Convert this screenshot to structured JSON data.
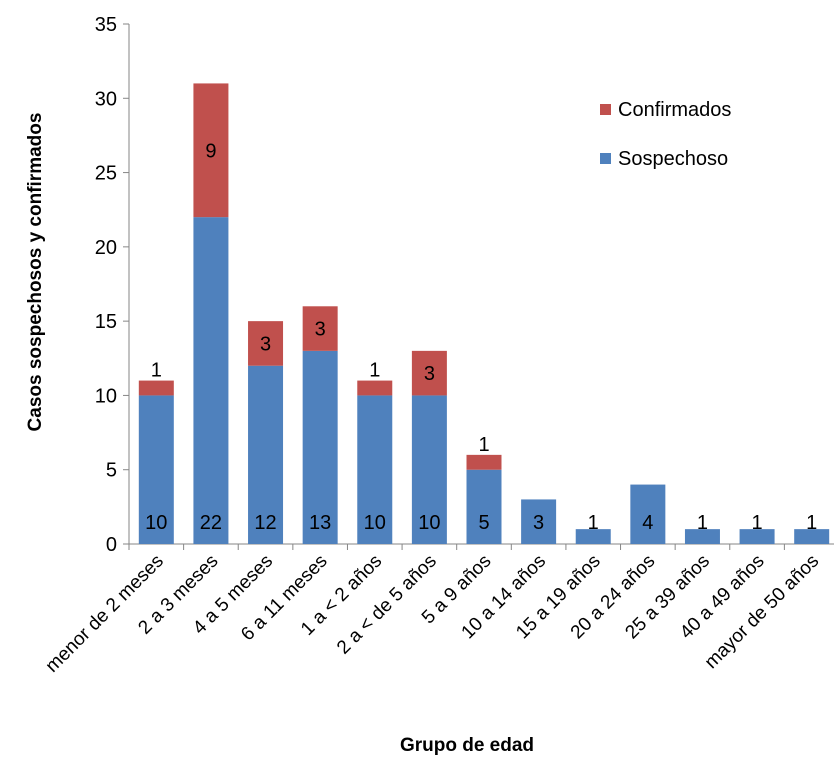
{
  "chart_data": {
    "type": "bar",
    "stacked": true,
    "title": "",
    "xlabel": "Grupo de edad",
    "ylabel": "Casos sospechosos y confirmados",
    "ylim": [
      0,
      35
    ],
    "yticks": [
      0,
      5,
      10,
      15,
      20,
      25,
      30,
      35
    ],
    "grid": false,
    "legend_position": "top-right",
    "categories": [
      "menor de 2 meses",
      "2 a 3 meses",
      "4 a 5 meses",
      "6 a 11 meses",
      "1 a < 2 años",
      "2 a < de 5 años",
      "5 a 9 años",
      "10 a 14 años",
      "15 a 19 años",
      "20 a 24 años",
      "25 a 39 años",
      "40 a 49 años",
      "mayor de 50 años"
    ],
    "series": [
      {
        "name": "Sospechoso",
        "color": "#4f81bd",
        "values": [
          10,
          22,
          12,
          13,
          10,
          10,
          5,
          3,
          1,
          4,
          1,
          1,
          1
        ]
      },
      {
        "name": "Confirmados",
        "color": "#c0504d",
        "values": [
          1,
          9,
          3,
          3,
          1,
          3,
          1,
          0,
          0,
          0,
          0,
          0,
          0
        ]
      }
    ]
  }
}
